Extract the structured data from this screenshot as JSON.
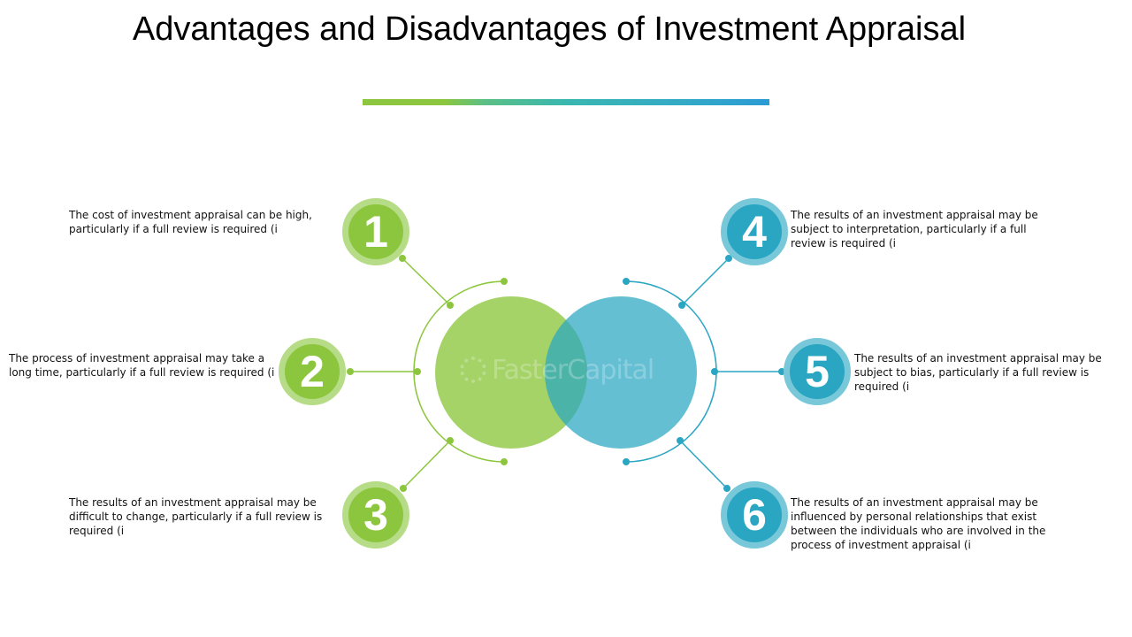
{
  "title": "Advantages and Disadvantages of Investment Appraisal",
  "watermark": "FasterCapital",
  "colors": {
    "green": "#8cc63e",
    "green_light": "#b6dc87",
    "blue": "#2aa6c2",
    "blue_light": "#79c8da",
    "text": "#111111"
  },
  "items": [
    {
      "number": "1",
      "color": "green",
      "text": "The cost of investment appraisal can be high, particularly if a full review is required (i"
    },
    {
      "number": "2",
      "color": "green",
      "text": "The process of investment appraisal may take a long time, particularly if a full review is required (i"
    },
    {
      "number": "3",
      "color": "green",
      "text": "The results of an investment appraisal may be difficult to change, particularly if a full review is required (i"
    },
    {
      "number": "4",
      "color": "blue",
      "text": "The results of an investment appraisal may be subject to interpretation, particularly if a full review is required (i"
    },
    {
      "number": "5",
      "color": "blue",
      "text": "The results of an investment appraisal may be subject to bias, particularly if a full review is required (i"
    },
    {
      "number": "6",
      "color": "blue",
      "text": "The results of an investment appraisal may be influenced by personal relationships that exist between the individuals who are involved in the process of investment appraisal (i"
    }
  ]
}
